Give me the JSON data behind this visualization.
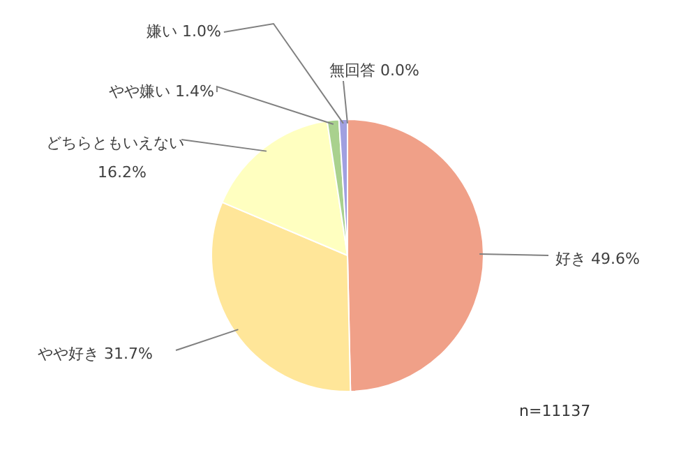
{
  "chart_data": {
    "type": "pie",
    "categories": [
      "好き",
      "やや好き",
      "どちらともいえない",
      "やや嫌い",
      "嫌い",
      "無回答"
    ],
    "values": [
      49.6,
      31.7,
      16.2,
      1.4,
      1.0,
      0.0
    ],
    "value_labels": [
      "49.6%",
      "31.7%",
      "16.2%",
      "1.4%",
      "1.0%",
      "0.0%"
    ],
    "colors": [
      "#f0a088",
      "#ffe699",
      "#ffffc0",
      "#a9d18e",
      "#a0a0e0",
      "#d9d9d9"
    ],
    "annotations": [
      "n=11137"
    ],
    "legend": false
  }
}
